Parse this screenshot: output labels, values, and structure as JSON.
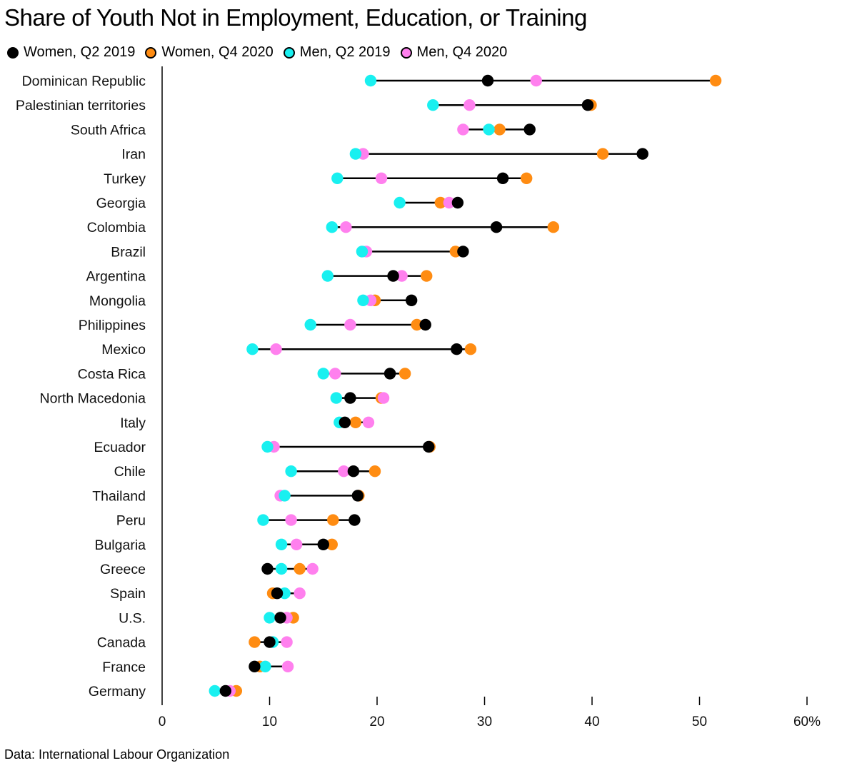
{
  "title": "Share of Youth Not in Employment, Education, or Training",
  "source": "Data: International Labour Organization",
  "colors": {
    "women_q2_2019": "#000000",
    "women_q4_2020": "#ff8c12",
    "men_q2_2019": "#19f0f0",
    "men_q4_2020": "#ff80ee"
  },
  "chart_data": {
    "type": "dot-range",
    "title": "Share of Youth Not in Employment, Education, or Training",
    "xlabel": "",
    "ylabel": "",
    "xlim": [
      0,
      60
    ],
    "xticks": [
      0,
      10,
      20,
      30,
      40,
      50,
      60
    ],
    "xtick_labels": [
      "0",
      "10",
      "20",
      "30",
      "40",
      "50",
      "60%"
    ],
    "legend_position": "top",
    "categories": [
      "Dominican Republic",
      "Palestinian territories",
      "South Africa",
      "Iran",
      "Turkey",
      "Georgia",
      "Colombia",
      "Brazil",
      "Argentina",
      "Mongolia",
      "Philippines",
      "Mexico",
      "Costa Rica",
      "North Macedonia",
      "Italy",
      "Ecuador",
      "Chile",
      "Thailand",
      "Peru",
      "Bulgaria",
      "Greece",
      "Spain",
      "U.S.",
      "Canada",
      "France",
      "Germany"
    ],
    "series": [
      {
        "name": "Women, Q2 2019",
        "key": "women_q2_2019",
        "values": [
          30.3,
          39.6,
          34.2,
          44.7,
          31.7,
          27.5,
          31.1,
          28.0,
          21.5,
          23.2,
          24.5,
          27.4,
          21.2,
          17.5,
          17.0,
          24.8,
          17.8,
          18.2,
          17.9,
          15.0,
          9.8,
          10.7,
          11.0,
          10.0,
          8.6,
          5.9
        ]
      },
      {
        "name": "Women, Q4 2020",
        "key": "women_q4_2020",
        "values": [
          51.5,
          39.9,
          31.4,
          41.0,
          33.9,
          25.9,
          36.4,
          27.3,
          24.6,
          19.8,
          23.7,
          28.7,
          22.6,
          20.4,
          18.0,
          24.9,
          19.8,
          18.3,
          15.9,
          15.8,
          12.8,
          10.3,
          12.2,
          8.6,
          9.1,
          6.9
        ]
      },
      {
        "name": "Men, Q2 2019",
        "key": "men_q2_2019",
        "values": [
          19.4,
          25.2,
          30.4,
          18.0,
          16.3,
          22.1,
          15.8,
          18.6,
          15.4,
          18.7,
          13.8,
          8.4,
          15.0,
          16.2,
          16.5,
          9.8,
          12.0,
          11.4,
          9.4,
          11.1,
          11.1,
          11.4,
          10.0,
          10.3,
          9.6,
          4.9
        ]
      },
      {
        "name": "Men, Q4 2020",
        "key": "men_q4_2020",
        "values": [
          34.8,
          28.6,
          28.0,
          18.7,
          20.4,
          26.7,
          17.1,
          19.0,
          22.3,
          19.4,
          17.5,
          10.6,
          16.1,
          20.6,
          19.2,
          10.4,
          16.9,
          11.0,
          12.0,
          12.5,
          14.0,
          12.8,
          11.6,
          11.6,
          11.7,
          6.3
        ]
      }
    ]
  }
}
